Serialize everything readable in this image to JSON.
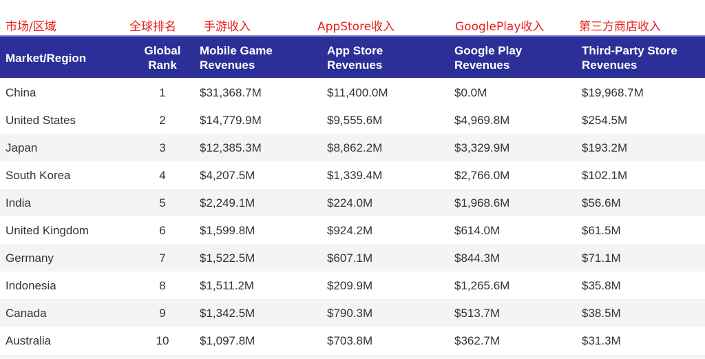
{
  "cn_labels": [
    "市场/区域",
    "全球排名",
    "手游收入",
    "AppStore收入",
    "GooglePlay收入",
    "第三方商店收入"
  ],
  "header": {
    "market": "Market/Region",
    "rank": [
      "Global",
      "Rank"
    ],
    "mobile": [
      "Mobile Game",
      "Revenues"
    ],
    "appstore": [
      "App Store",
      "Revenues"
    ],
    "googleplay": [
      "Google Play",
      "Revenues"
    ],
    "thirdparty": [
      "Third-Party Store",
      "Revenues"
    ]
  },
  "colors": {
    "header_bg": "#2c2f98",
    "cn_label": "#e8201c",
    "stripe": "#f4f4f4"
  },
  "rows": [
    [
      "China",
      "1",
      "$31,368.7M",
      "$11,400.0M",
      "$0.0M",
      "$19,968.7M"
    ],
    [
      "United States",
      "2",
      "$14,779.9M",
      "$9,555.6M",
      "$4,969.8M",
      "$254.5M"
    ],
    [
      "Japan",
      "3",
      "$12,385.3M",
      "$8,862.2M",
      "$3,329.9M",
      "$193.2M"
    ],
    [
      "South Korea",
      "4",
      "$4,207.5M",
      "$1,339.4M",
      "$2,766.0M",
      "$102.1M"
    ],
    [
      "India",
      "5",
      "$2,249.1M",
      "$224.0M",
      "$1,968.6M",
      "$56.6M"
    ],
    [
      "United Kingdom",
      "6",
      "$1,599.8M",
      "$924.2M",
      "$614.0M",
      "$61.5M"
    ],
    [
      "Germany",
      "7",
      "$1,522.5M",
      "$607.1M",
      "$844.3M",
      "$71.1M"
    ],
    [
      "Indonesia",
      "8",
      "$1,511.2M",
      "$209.9M",
      "$1,265.6M",
      "$35.8M"
    ],
    [
      "Canada",
      "9",
      "$1,342.5M",
      "$790.3M",
      "$513.7M",
      "$38.5M"
    ],
    [
      "Australia",
      "10",
      "$1,097.8M",
      "$703.8M",
      "$362.7M",
      "$31.3M"
    ]
  ]
}
